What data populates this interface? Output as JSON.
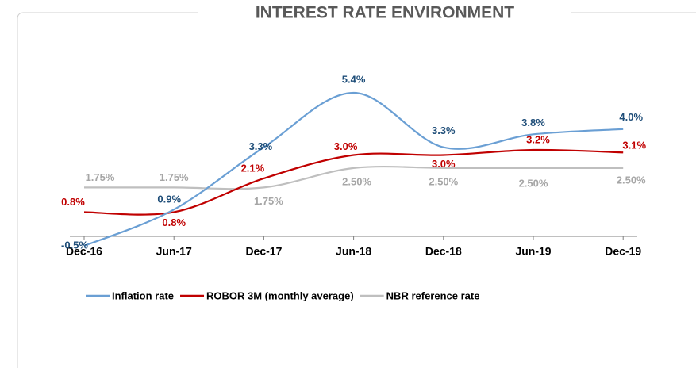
{
  "chart_data": {
    "type": "line",
    "title": "INTEREST RATE ENVIRONMENT",
    "categories": [
      "Dec-16",
      "Jun-17",
      "Dec-17",
      "Jun-18",
      "Dec-18",
      "Jun-19",
      "Dec-19"
    ],
    "series": [
      {
        "name": "Inflation rate",
        "color": "#6a9fd4",
        "label_color": "#1f4e79",
        "values": [
          -0.5,
          0.9,
          3.3,
          5.4,
          3.3,
          3.8,
          4.0
        ],
        "value_labels": [
          "-0.5%",
          "0.9%",
          "3.3%",
          "5.4%",
          "3.3%",
          "3.8%",
          "4.0%"
        ]
      },
      {
        "name": "ROBOR 3M (monthly average)",
        "color": "#c00000",
        "label_color": "#c00000",
        "values": [
          0.8,
          0.8,
          2.1,
          3.0,
          3.0,
          3.2,
          3.1
        ],
        "value_labels": [
          "0.8%",
          "0.8%",
          "2.1%",
          "3.0%",
          "3.0%",
          "3.2%",
          "3.1%"
        ]
      },
      {
        "name": "NBR reference rate",
        "color": "#bfbfbf",
        "label_color": "#a6a6a6",
        "values": [
          1.75,
          1.75,
          1.75,
          2.5,
          2.5,
          2.5,
          2.5
        ],
        "value_labels": [
          "1.75%",
          "1.75%",
          "1.75%",
          "2.50%",
          "2.50%",
          "2.50%",
          "2.50%"
        ]
      }
    ]
  }
}
